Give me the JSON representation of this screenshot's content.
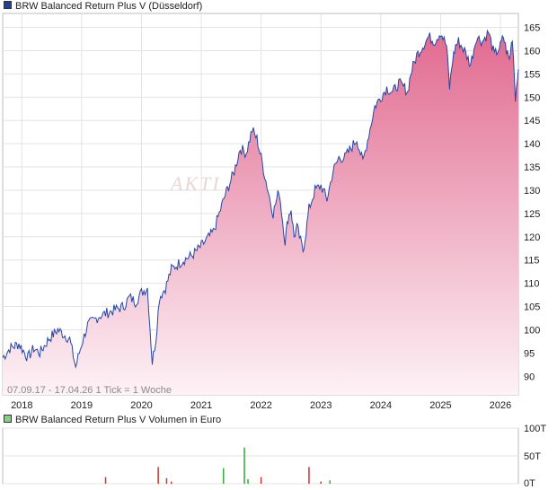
{
  "colors": {
    "line": "#2646a6",
    "area_top": "#e16a90",
    "area_bottom": "#fdf2f6",
    "volume_red": "#cc3333",
    "volume_green": "#33aa33",
    "grid": "#e3e3e3",
    "axis": "#bbbbbb",
    "legend_main_swatch": "#24408f",
    "legend_volume_swatch": "#7fd47f"
  },
  "legend": {
    "main": "BRW Balanced Return Plus V (Düsseldorf)",
    "volume": "BRW Balanced Return Plus V Volumen in Euro"
  },
  "info_text": "07.09.17 - 17.04.26   1 Tick = 1 Woche",
  "watermark": "AKTI",
  "chart_data": [
    {
      "type": "area",
      "series": [
        {
          "name": "BRW Balanced Return Plus V (Düsseldorf)",
          "x": [
            2017.68,
            2017.8,
            2017.95,
            2018.1,
            2018.2,
            2018.3,
            2018.45,
            2018.6,
            2018.8,
            2018.9,
            2019.0,
            2019.1,
            2019.3,
            2019.5,
            2019.7,
            2019.8,
            2019.9,
            2020.0,
            2020.1,
            2020.18,
            2020.24,
            2020.3,
            2020.4,
            2020.5,
            2020.7,
            2020.85,
            2021.0,
            2021.2,
            2021.4,
            2021.55,
            2021.65,
            2021.75,
            2021.85,
            2021.93,
            2022.0,
            2022.08,
            2022.2,
            2022.3,
            2022.4,
            2022.45,
            2022.5,
            2022.55,
            2022.6,
            2022.7,
            2022.75,
            2022.8,
            2022.9,
            2023.0,
            2023.1,
            2023.2,
            2023.3,
            2023.4,
            2023.5,
            2023.6,
            2023.7,
            2023.8,
            2023.9,
            2024.0,
            2024.1,
            2024.2,
            2024.3,
            2024.4,
            2024.45,
            2024.5,
            2024.6,
            2024.7,
            2024.8,
            2024.9,
            2025.0,
            2025.1,
            2025.15,
            2025.2,
            2025.25,
            2025.3,
            2025.4,
            2025.5,
            2025.6,
            2025.7,
            2025.8,
            2025.9,
            2026.0,
            2026.05,
            2026.1,
            2026.15,
            2026.2,
            2026.25,
            2026.3
          ],
          "values": [
            94,
            96,
            97,
            94,
            96,
            95,
            98,
            100,
            98,
            92,
            97,
            101,
            103,
            104,
            105,
            107,
            106,
            108,
            109,
            93,
            98,
            107,
            109,
            113,
            115,
            116,
            118,
            121,
            129,
            134,
            139,
            138,
            143,
            141,
            137,
            132,
            125,
            130,
            119,
            124,
            126,
            120,
            122,
            117,
            121,
            126,
            130,
            131,
            128,
            134,
            137,
            137,
            139,
            141,
            136,
            142,
            148,
            150,
            152,
            151,
            153,
            152,
            151,
            155,
            159,
            161,
            163,
            162,
            164,
            161,
            152,
            158,
            161,
            162,
            160,
            157,
            163,
            162,
            164,
            159,
            161,
            163,
            160,
            158,
            163,
            150,
            156
          ]
        }
      ],
      "xlim": [
        2017.68,
        2026.3
      ],
      "ylim": [
        86,
        168
      ],
      "yticks": [
        90,
        95,
        100,
        105,
        110,
        115,
        120,
        125,
        130,
        135,
        140,
        145,
        150,
        155,
        160,
        165
      ],
      "xticks": [
        "2018",
        "2019",
        "2020",
        "2021",
        "2022",
        "2023",
        "2024",
        "2025",
        "2026"
      ],
      "grid": true
    },
    {
      "type": "bar",
      "series": [
        {
          "name": "BRW Balanced Return Plus V Volumen in Euro",
          "x": [
            2019.4,
            2020.28,
            2020.42,
            2020.5,
            2021.37,
            2021.72,
            2021.78,
            2022.0,
            2022.8,
            2023.0,
            2023.15
          ],
          "values": [
            12,
            30,
            10,
            4,
            28,
            65,
            8,
            12,
            30,
            4,
            6
          ],
          "colors": [
            "red",
            "red",
            "red",
            "red",
            "green",
            "green",
            "green",
            "red",
            "red",
            "red",
            "green"
          ]
        }
      ],
      "xlim": [
        2017.68,
        2026.3
      ],
      "ylim": [
        0,
        100
      ],
      "yticks": [
        "0T",
        "50T",
        "100T"
      ]
    }
  ]
}
